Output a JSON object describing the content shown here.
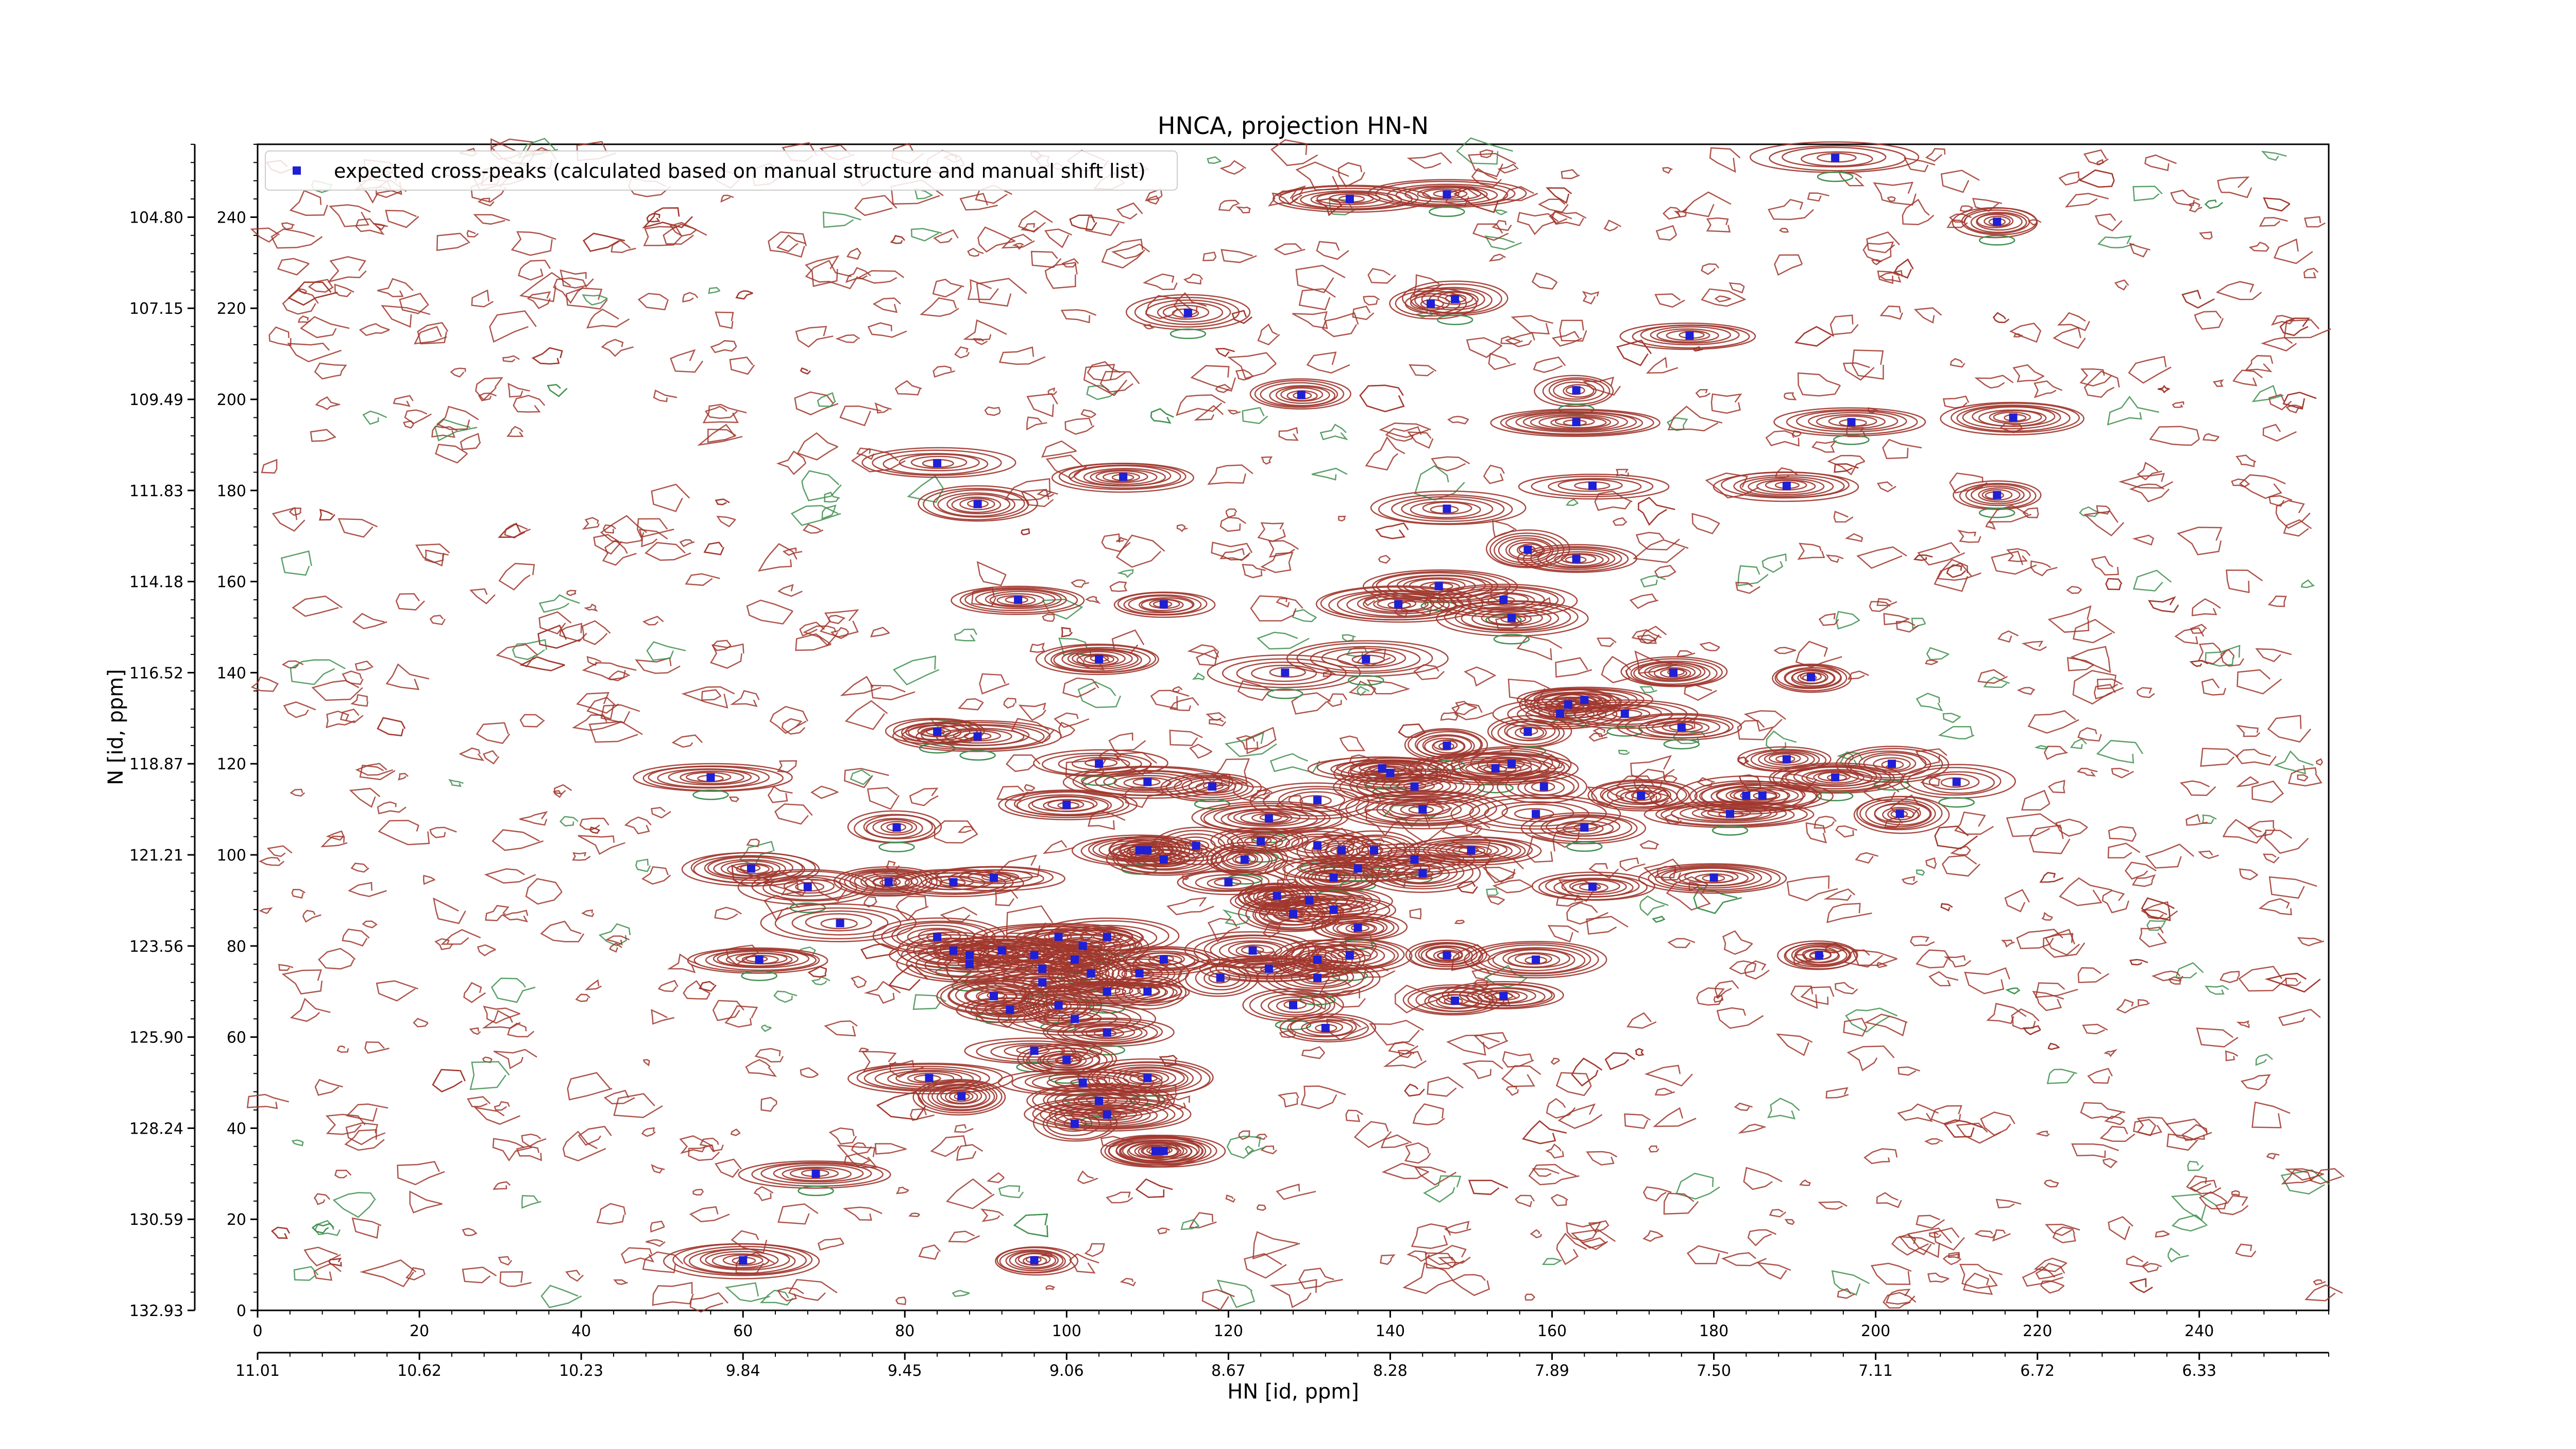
{
  "chart_data": {
    "type": "scatter",
    "title": "HNCA, projection HN-N",
    "xlabel": "HN [id, ppm]",
    "ylabel": "N [id, ppm]",
    "xlim": [
      0,
      256
    ],
    "ylim": [
      0,
      256
    ],
    "x_ticks_index": [
      "0",
      "20",
      "40",
      "60",
      "80",
      "100",
      "120",
      "140",
      "160",
      "180",
      "200",
      "220",
      "240"
    ],
    "x_ticks_ppm": [
      "11.01",
      "10.62",
      "10.23",
      "9.84",
      "9.45",
      "9.06",
      "8.67",
      "8.28",
      "7.89",
      "7.50",
      "7.11",
      "6.72",
      "6.33"
    ],
    "y_ticks_index": [
      "0",
      "20",
      "40",
      "60",
      "80",
      "100",
      "120",
      "140",
      "160",
      "180",
      "200",
      "220",
      "240"
    ],
    "y_ticks_ppm": [
      "132.93",
      "130.59",
      "128.24",
      "125.90",
      "123.56",
      "121.21",
      "118.87",
      "116.52",
      "114.18",
      "111.83",
      "109.49",
      "107.15",
      "104.80"
    ],
    "legend": {
      "position": "top-left",
      "label": "expected cross-peaks (calculated based on manual structure and manual shift list)"
    },
    "colors": {
      "positive_contour": "#a0362c",
      "negative_contour": "#3f8f4f",
      "marker": "#1f1fd6",
      "axis": "#000000"
    },
    "series": [
      {
        "name": "expected cross-peaks (calculated based on manual structure and manual shift list)",
        "points": [
          [
            195,
            253
          ],
          [
            135,
            244
          ],
          [
            147,
            245
          ],
          [
            215,
            239
          ],
          [
            115,
            219
          ],
          [
            145,
            221
          ],
          [
            148,
            222
          ],
          [
            177,
            214
          ],
          [
            129,
            201
          ],
          [
            163,
            202
          ],
          [
            197,
            195
          ],
          [
            217,
            196
          ],
          [
            163,
            195
          ],
          [
            84,
            186
          ],
          [
            107,
            183
          ],
          [
            165,
            181
          ],
          [
            189,
            181
          ],
          [
            215,
            179
          ],
          [
            89,
            177
          ],
          [
            147,
            176
          ],
          [
            163,
            165
          ],
          [
            157,
            167
          ],
          [
            146,
            159
          ],
          [
            141,
            155
          ],
          [
            94,
            156
          ],
          [
            112,
            155
          ],
          [
            154,
            156
          ],
          [
            155,
            152
          ],
          [
            104,
            143
          ],
          [
            127,
            140
          ],
          [
            137,
            143
          ],
          [
            192,
            139
          ],
          [
            175,
            140
          ],
          [
            164,
            134
          ],
          [
            162,
            133
          ],
          [
            161,
            131
          ],
          [
            169,
            131
          ],
          [
            176,
            128
          ],
          [
            157,
            127
          ],
          [
            84,
            127
          ],
          [
            89,
            126
          ],
          [
            147,
            124
          ],
          [
            104,
            120
          ],
          [
            139,
            119
          ],
          [
            140,
            118
          ],
          [
            153,
            119
          ],
          [
            155,
            120
          ],
          [
            189,
            121
          ],
          [
            202,
            120
          ],
          [
            195,
            117
          ],
          [
            56,
            117
          ],
          [
            110,
            116
          ],
          [
            118,
            115
          ],
          [
            143,
            115
          ],
          [
            159,
            115
          ],
          [
            171,
            113
          ],
          [
            184,
            113
          ],
          [
            186,
            113
          ],
          [
            203,
            109
          ],
          [
            210,
            116
          ],
          [
            100,
            111
          ],
          [
            131,
            112
          ],
          [
            144,
            110
          ],
          [
            158,
            109
          ],
          [
            125,
            108
          ],
          [
            182,
            109
          ],
          [
            79,
            106
          ],
          [
            164,
            106
          ],
          [
            116,
            102
          ],
          [
            109,
            101
          ],
          [
            110,
            101
          ],
          [
            131,
            102
          ],
          [
            124,
            103
          ],
          [
            134,
            101
          ],
          [
            138,
            101
          ],
          [
            150,
            101
          ],
          [
            143,
            99
          ],
          [
            122,
            99
          ],
          [
            112,
            99
          ],
          [
            61,
            97
          ],
          [
            120,
            94
          ],
          [
            133,
            95
          ],
          [
            136,
            97
          ],
          [
            144,
            96
          ],
          [
            68,
            93
          ],
          [
            86,
            94
          ],
          [
            78,
            94
          ],
          [
            165,
            93
          ],
          [
            180,
            95
          ],
          [
            91,
            95
          ],
          [
            126,
            91
          ],
          [
            133,
            88
          ],
          [
            130,
            90
          ],
          [
            128,
            87
          ],
          [
            72,
            85
          ],
          [
            136,
            84
          ],
          [
            84,
            82
          ],
          [
            99,
            82
          ],
          [
            102,
            80
          ],
          [
            105,
            82
          ],
          [
            193,
            78
          ],
          [
            86,
            79
          ],
          [
            88,
            78
          ],
          [
            92,
            79
          ],
          [
            96,
            78
          ],
          [
            123,
            79
          ],
          [
            135,
            78
          ],
          [
            147,
            78
          ],
          [
            158,
            77
          ],
          [
            62,
            77
          ],
          [
            101,
            77
          ],
          [
            88,
            76
          ],
          [
            97,
            75
          ],
          [
            112,
            77
          ],
          [
            131,
            77
          ],
          [
            125,
            75
          ],
          [
            103,
            74
          ],
          [
            109,
            74
          ],
          [
            119,
            73
          ],
          [
            131,
            73
          ],
          [
            97,
            72
          ],
          [
            91,
            69
          ],
          [
            105,
            70
          ],
          [
            110,
            70
          ],
          [
            148,
            68
          ],
          [
            154,
            69
          ],
          [
            99,
            67
          ],
          [
            128,
            67
          ],
          [
            93,
            66
          ],
          [
            101,
            64
          ],
          [
            105,
            61
          ],
          [
            132,
            62
          ],
          [
            96,
            57
          ],
          [
            100,
            55
          ],
          [
            102,
            50
          ],
          [
            83,
            51
          ],
          [
            110,
            51
          ],
          [
            87,
            47
          ],
          [
            104,
            46
          ],
          [
            105,
            43
          ],
          [
            101,
            41
          ],
          [
            111,
            35
          ],
          [
            112,
            35
          ],
          [
            69,
            30
          ],
          [
            60,
            11
          ],
          [
            96,
            11
          ]
        ]
      }
    ]
  }
}
